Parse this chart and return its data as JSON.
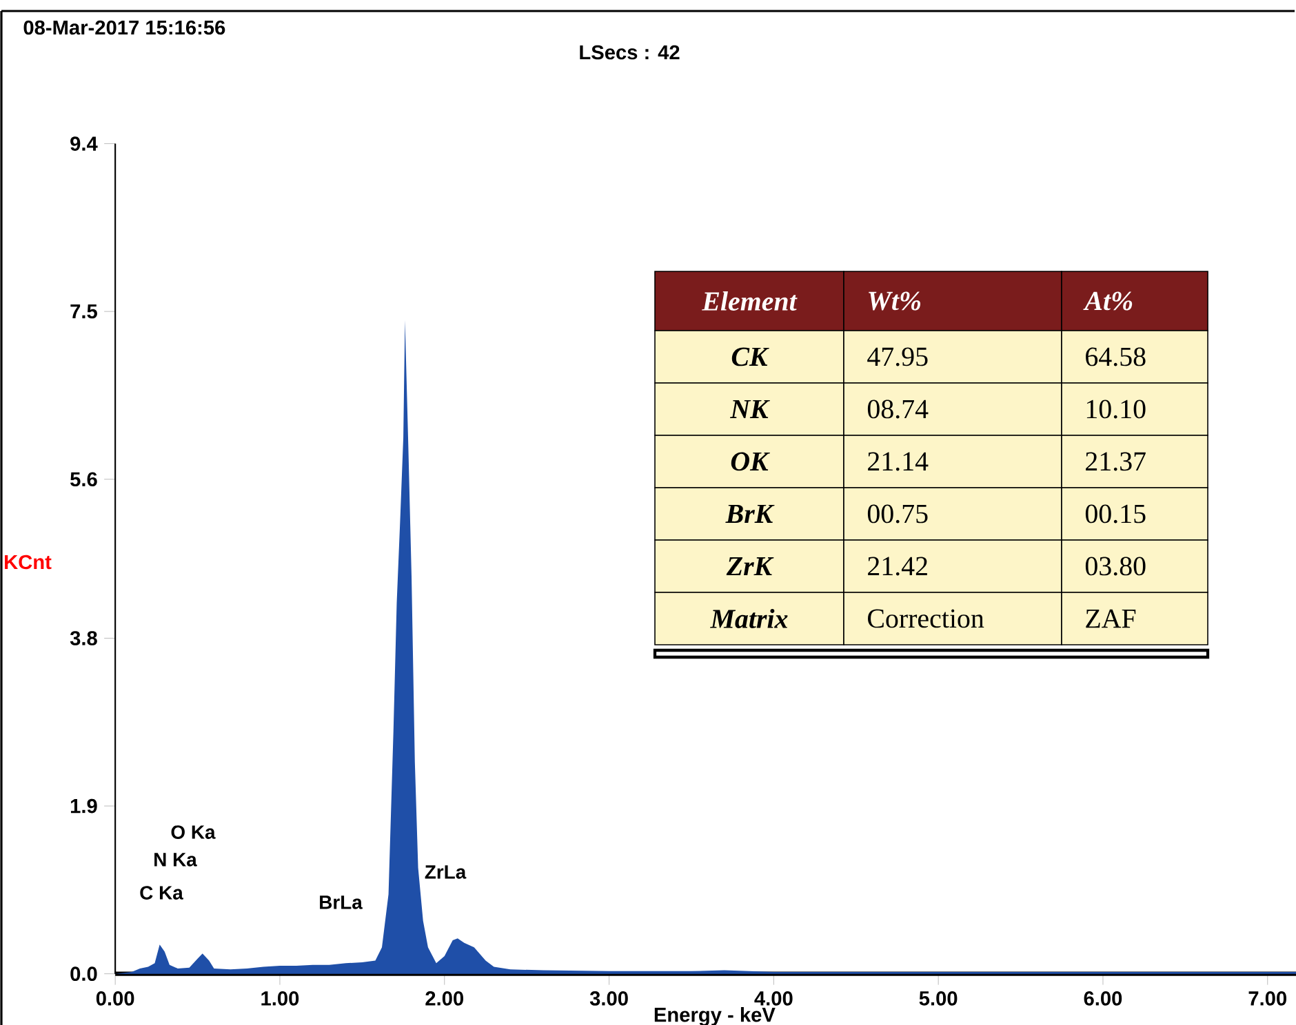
{
  "chart_data": {
    "type": "area",
    "xlabel": "Energy - keV",
    "ylabel": "KCnt",
    "color": "#1f4fa8",
    "xlim": [
      0,
      7.28
    ],
    "ylim": [
      0,
      9.4
    ],
    "xticks": [
      {
        "value": 0,
        "label": "0.00"
      },
      {
        "value": 1,
        "label": "1.00"
      },
      {
        "value": 2,
        "label": "2.00"
      },
      {
        "value": 3,
        "label": "3.00"
      },
      {
        "value": 4,
        "label": "4.00"
      },
      {
        "value": 5,
        "label": "5.00"
      },
      {
        "value": 6,
        "label": "6.00"
      },
      {
        "value": 7,
        "label": "7.00"
      }
    ],
    "yticks": [
      {
        "value": 0,
        "label": "0.0"
      },
      1.9,
      3.8,
      5.6,
      7.5,
      9.4
    ],
    "x": [
      0.0,
      0.1,
      0.15,
      0.2,
      0.24,
      0.27,
      0.3,
      0.33,
      0.38,
      0.45,
      0.5,
      0.53,
      0.57,
      0.6,
      0.7,
      0.8,
      0.9,
      1.0,
      1.1,
      1.2,
      1.3,
      1.4,
      1.5,
      1.58,
      1.62,
      1.66,
      1.69,
      1.71,
      1.73,
      1.75,
      1.76,
      1.78,
      1.8,
      1.82,
      1.84,
      1.87,
      1.9,
      1.95,
      2.0,
      2.05,
      2.08,
      2.12,
      2.18,
      2.25,
      2.3,
      2.4,
      2.6,
      3.0,
      3.5,
      3.7,
      4.0,
      5.0,
      6.0,
      7.0,
      7.28
    ],
    "values": [
      0,
      0.02,
      0.06,
      0.08,
      0.12,
      0.33,
      0.25,
      0.1,
      0.06,
      0.07,
      0.17,
      0.23,
      0.15,
      0.06,
      0.05,
      0.06,
      0.08,
      0.09,
      0.09,
      0.1,
      0.1,
      0.12,
      0.13,
      0.15,
      0.3,
      0.9,
      2.75,
      4.2,
      5.1,
      6.07,
      7.4,
      6.0,
      4.5,
      2.4,
      1.2,
      0.6,
      0.3,
      0.12,
      0.2,
      0.38,
      0.4,
      0.35,
      0.3,
      0.15,
      0.08,
      0.05,
      0.04,
      0.03,
      0.03,
      0.04,
      0.02,
      0.02,
      0.02,
      0.02,
      0.02
    ],
    "annotations": [
      "08-Mar-2017 15:16:56",
      "LSecs : 42",
      "Element",
      "Wt%",
      "At%",
      "CK",
      "47.95",
      "64.58",
      "NK",
      "08.74",
      "10.10",
      "OK",
      "21.14",
      "21.37",
      "BrK",
      "00.75",
      "00.15",
      "ZrK",
      "21.42",
      "03.80",
      "Matrix",
      "Correction",
      "ZAF",
      "C Ka",
      "N Ka",
      "O Ka",
      "BrLa",
      "ZrLa"
    ]
  }
}
